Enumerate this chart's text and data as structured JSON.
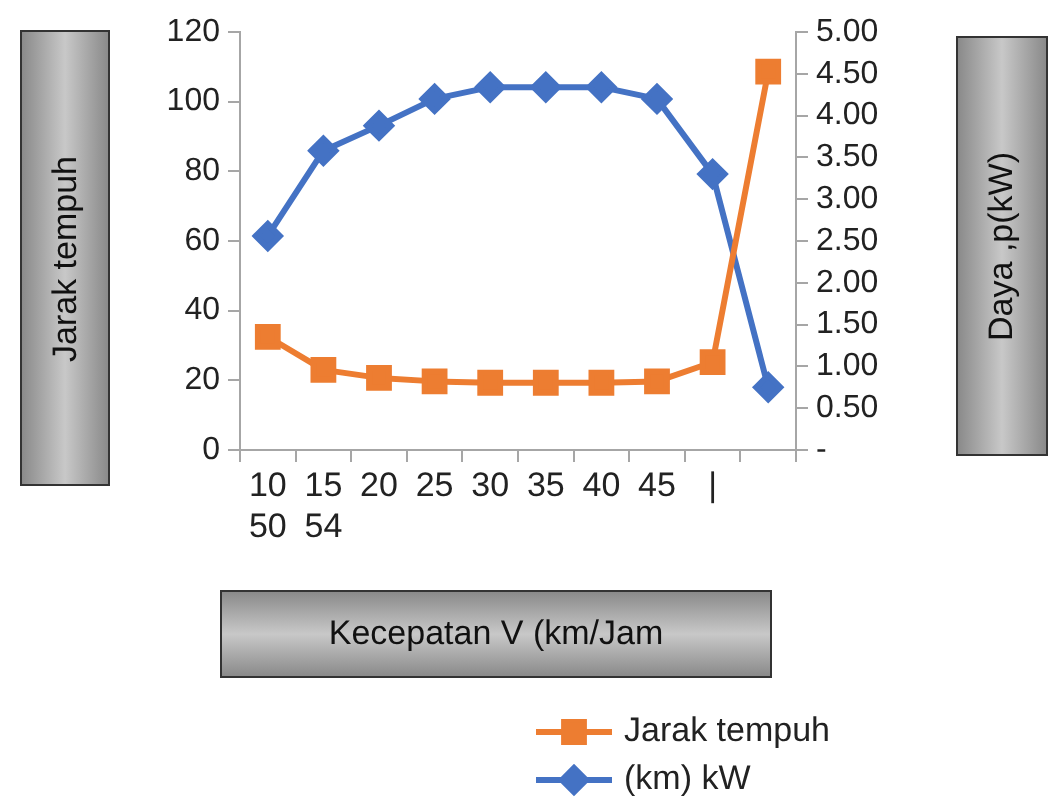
{
  "chart_data": {
    "type": "line",
    "xlabel": "Kecepatan V (km/Jam",
    "ylabel": "Jarak tempuh",
    "y2label": "Daya ,p(kW)",
    "categories": [
      "10\n50",
      "15\n54",
      "20",
      "25",
      "30",
      "35",
      "40",
      "45",
      "|",
      null
    ],
    "series": [
      {
        "name": "Jarak tempuh",
        "color": "#ed7d31",
        "marker": "square",
        "values": [
          32.5,
          23,
          20.7,
          19.7,
          19.3,
          19.3,
          19.3,
          19.7,
          25.2,
          108.6
        ]
      },
      {
        "name": "(km) kW",
        "color": "#4472c4",
        "marker": "diamond",
        "axis": "y2",
        "values": [
          2.56,
          3.58,
          3.88,
          4.2,
          4.34,
          4.34,
          4.34,
          4.2,
          3.3,
          0.75
        ]
      }
    ],
    "ylim": [
      0,
      120
    ],
    "yticks": [
      0,
      20,
      40,
      60,
      80,
      100,
      120
    ],
    "y2lim": [
      0,
      5
    ],
    "y2ticks": [
      {
        "value": 0,
        "label": "-"
      },
      {
        "value": 0.5,
        "label": "0.50"
      },
      {
        "value": 1,
        "label": "1.00"
      },
      {
        "value": 1.5,
        "label": "1.50"
      },
      {
        "value": 2,
        "label": "2.00"
      },
      {
        "value": 2.5,
        "label": "2.50"
      },
      {
        "value": 3,
        "label": "3.00"
      },
      {
        "value": 3.5,
        "label": "3.50"
      },
      {
        "value": 4,
        "label": "4.00"
      },
      {
        "value": 4.5,
        "label": "4.50"
      },
      {
        "value": 5,
        "label": "5.00"
      }
    ],
    "grid": false,
    "legend": "bottom right"
  }
}
